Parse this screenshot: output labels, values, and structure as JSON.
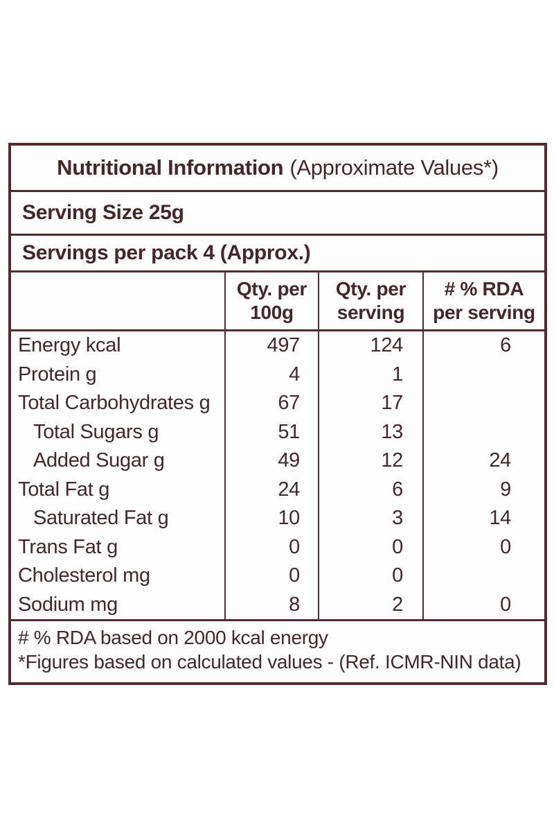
{
  "colors": {
    "border": "#522a31",
    "text": "#45272b",
    "background": "#ffffff"
  },
  "label": {
    "title_bold": "Nutritional Information",
    "title_rest": "(Approximate Values*)",
    "serving_size": "Serving Size 25g",
    "servings_per_pack": "Servings per pack 4 (Approx.)",
    "columns": [
      {
        "line1": "Qty. per",
        "line2": "100g"
      },
      {
        "line1": "Qty. per",
        "line2": "serving"
      },
      {
        "line1": "# % RDA",
        "line2": "per serving"
      }
    ],
    "rows": [
      {
        "name": "Energy kcal",
        "indent": false,
        "per_100g": "497",
        "per_serving": "124",
        "rda_per_serving": "6"
      },
      {
        "name": "Protein g",
        "indent": false,
        "per_100g": "4",
        "per_serving": "1",
        "rda_per_serving": ""
      },
      {
        "name": "Total Carbohydrates g",
        "indent": false,
        "per_100g": "67",
        "per_serving": "17",
        "rda_per_serving": ""
      },
      {
        "name": "Total Sugars g",
        "indent": true,
        "per_100g": "51",
        "per_serving": "13",
        "rda_per_serving": ""
      },
      {
        "name": "Added Sugar g",
        "indent": true,
        "per_100g": "49",
        "per_serving": "12",
        "rda_per_serving": "24"
      },
      {
        "name": "Total Fat g",
        "indent": false,
        "per_100g": "24",
        "per_serving": "6",
        "rda_per_serving": "9"
      },
      {
        "name": "Saturated Fat g",
        "indent": true,
        "per_100g": "10",
        "per_serving": "3",
        "rda_per_serving": "14"
      },
      {
        "name": "Trans Fat g",
        "indent": false,
        "per_100g": "0",
        "per_serving": "0",
        "rda_per_serving": "0"
      },
      {
        "name": "Cholesterol mg",
        "indent": false,
        "per_100g": "0",
        "per_serving": "0",
        "rda_per_serving": ""
      },
      {
        "name": "Sodium mg",
        "indent": false,
        "per_100g": "8",
        "per_serving": "2",
        "rda_per_serving": "0"
      }
    ],
    "footnotes": [
      "# % RDA based on 2000 kcal energy",
      "*Figures based on calculated values - (Ref. ICMR-NIN data)"
    ]
  }
}
